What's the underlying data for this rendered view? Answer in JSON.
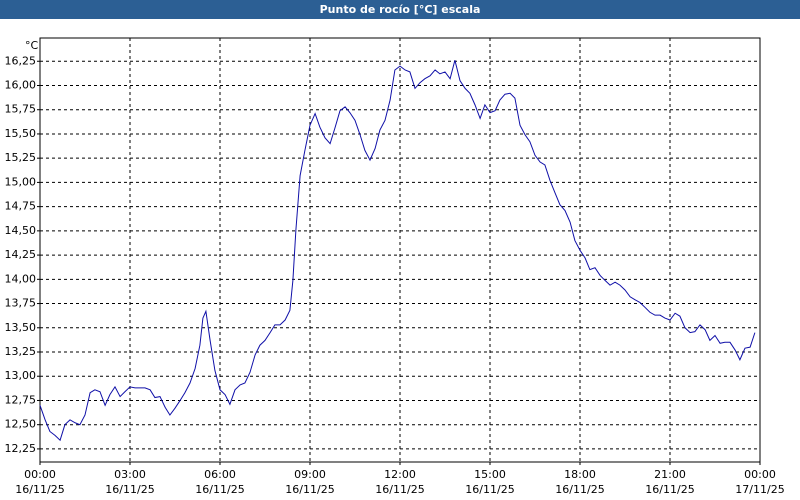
{
  "chart_data": {
    "type": "line",
    "title": "Punto de rocío [°C] escala",
    "y_unit": "°C",
    "color": "#1010a8",
    "grid": true,
    "xlim": [
      0,
      24
    ],
    "xticks": [
      {
        "value": 0,
        "label": "00:00\n16/11/25"
      },
      {
        "value": 3,
        "label": "03:00\n16/11/25"
      },
      {
        "value": 6,
        "label": "06:00\n16/11/25"
      },
      {
        "value": 9,
        "label": "09:00\n16/11/25"
      },
      {
        "value": 12,
        "label": "12:00\n16/11/25"
      },
      {
        "value": 15,
        "label": "15:00\n16/11/25"
      },
      {
        "value": 18,
        "label": "18:00\n16/11/25"
      },
      {
        "value": 21,
        "label": "21:00\n16/11/25"
      },
      {
        "value": 24,
        "label": "00:00\n17/11/25"
      }
    ],
    "ylim": [
      12.115,
      16.49
    ],
    "yticks": [
      {
        "value": 12.25,
        "label": "12,25"
      },
      {
        "value": 12.5,
        "label": "12,50"
      },
      {
        "value": 12.75,
        "label": "12,75"
      },
      {
        "value": 13,
        "label": "13,00"
      },
      {
        "value": 13.25,
        "label": "13,25"
      },
      {
        "value": 13.5,
        "label": "13,50"
      },
      {
        "value": 13.75,
        "label": "13,75"
      },
      {
        "value": 14,
        "label": "14,00"
      },
      {
        "value": 14.25,
        "label": "14,25"
      },
      {
        "value": 14.5,
        "label": "14,50"
      },
      {
        "value": 14.75,
        "label": "14,75"
      },
      {
        "value": 15,
        "label": "15,00"
      },
      {
        "value": 15.25,
        "label": "15,25"
      },
      {
        "value": 15.5,
        "label": "15,50"
      },
      {
        "value": 15.75,
        "label": "15,75"
      },
      {
        "value": 16,
        "label": "16,00"
      },
      {
        "value": 16.25,
        "label": "16,25"
      }
    ],
    "x": [
      0,
      0.17,
      0.33,
      0.5,
      0.67,
      0.83,
      1,
      1.17,
      1.33,
      1.5,
      1.67,
      1.83,
      2,
      2.17,
      2.33,
      2.5,
      2.67,
      2.83,
      3,
      3.17,
      3.33,
      3.5,
      3.67,
      3.83,
      4,
      4.17,
      4.33,
      4.5,
      4.67,
      4.83,
      5,
      5.17,
      5.33,
      5.43,
      5.53,
      5.67,
      5.83,
      6,
      6.17,
      6.33,
      6.5,
      6.67,
      6.83,
      7,
      7.17,
      7.33,
      7.5,
      7.67,
      7.83,
      8,
      8.17,
      8.33,
      8.43,
      8.53,
      8.67,
      8.83,
      9,
      9.17,
      9.33,
      9.5,
      9.67,
      9.83,
      10,
      10.17,
      10.33,
      10.5,
      10.67,
      10.83,
      11,
      11.17,
      11.33,
      11.5,
      11.67,
      11.83,
      12,
      12.17,
      12.33,
      12.5,
      12.67,
      12.83,
      13,
      13.17,
      13.33,
      13.5,
      13.67,
      13.83,
      14,
      14.17,
      14.33,
      14.5,
      14.67,
      14.83,
      15,
      15.17,
      15.33,
      15.5,
      15.67,
      15.83,
      16,
      16.17,
      16.33,
      16.5,
      16.67,
      16.83,
      17,
      17.17,
      17.33,
      17.5,
      17.67,
      17.83,
      18,
      18.17,
      18.33,
      18.5,
      18.67,
      18.83,
      19,
      19.17,
      19.33,
      19.5,
      19.67,
      19.83,
      20,
      20.17,
      20.33,
      20.5,
      20.67,
      20.83,
      21,
      21.17,
      21.33,
      21.5,
      21.67,
      21.83,
      22,
      22.17,
      22.33,
      22.5,
      22.67,
      22.83,
      23,
      23.17,
      23.33,
      23.5,
      23.67,
      23.83
    ],
    "values": [
      12.7,
      12.55,
      12.43,
      12.39,
      12.34,
      12.5,
      12.55,
      12.52,
      12.5,
      12.6,
      12.83,
      12.86,
      12.84,
      12.7,
      12.81,
      12.89,
      12.79,
      12.84,
      12.89,
      12.88,
      12.88,
      12.88,
      12.86,
      12.78,
      12.79,
      12.68,
      12.6,
      12.67,
      12.75,
      12.83,
      12.93,
      13.08,
      13.32,
      13.6,
      13.67,
      13.37,
      13.06,
      12.86,
      12.81,
      12.71,
      12.86,
      12.91,
      12.93,
      13.04,
      13.22,
      13.32,
      13.37,
      13.45,
      13.53,
      13.53,
      13.58,
      13.68,
      13.99,
      14.51,
      15.07,
      15.33,
      15.59,
      15.71,
      15.57,
      15.46,
      15.4,
      15.56,
      15.74,
      15.78,
      15.72,
      15.64,
      15.49,
      15.33,
      15.23,
      15.35,
      15.54,
      15.64,
      15.85,
      16.16,
      16.2,
      16.16,
      16.14,
      15.97,
      16.03,
      16.07,
      16.1,
      16.16,
      16.12,
      16.14,
      16.07,
      16.26,
      16.05,
      15.97,
      15.92,
      15.8,
      15.66,
      15.8,
      15.72,
      15.74,
      15.85,
      15.91,
      15.92,
      15.87,
      15.59,
      15.49,
      15.42,
      15.28,
      15.21,
      15.18,
      15.02,
      14.89,
      14.77,
      14.71,
      14.59,
      14.4,
      14.3,
      14.22,
      14.1,
      14.12,
      14.04,
      13.99,
      13.94,
      13.97,
      13.94,
      13.89,
      13.82,
      13.79,
      13.76,
      13.71,
      13.66,
      13.63,
      13.63,
      13.6,
      13.58,
      13.65,
      13.62,
      13.5,
      13.45,
      13.46,
      13.53,
      13.48,
      13.37,
      13.42,
      13.34,
      13.35,
      13.35,
      13.27,
      13.17,
      13.29,
      13.3,
      13.45
    ]
  }
}
